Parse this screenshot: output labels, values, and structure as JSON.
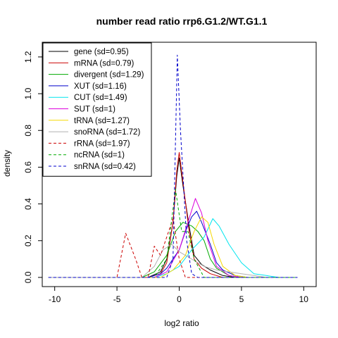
{
  "chart_data": {
    "type": "line",
    "title": "number read ratio rrp6.G1.2/WT.G1.1",
    "xlabel": "log2 ratio",
    "ylabel": "density",
    "xlim": [
      -11,
      11
    ],
    "ylim": [
      -0.05,
      1.28
    ],
    "xticks": [
      -10,
      -5,
      0,
      5,
      10
    ],
    "yticks": [
      0.0,
      0.2,
      0.4,
      0.6,
      0.8,
      1.0,
      1.2
    ],
    "xtick_labels": [
      "-10",
      "-5",
      "0",
      "5",
      "10"
    ],
    "ytick_labels": [
      "0.0",
      "0.2",
      "0.4",
      "0.6",
      "0.8",
      "1.0",
      "1.2"
    ],
    "legend_position": "top-left",
    "grid": false,
    "series": [
      {
        "name": "gene (sd=0.95)",
        "color": "#000000",
        "dashed": false,
        "points": [
          [
            -10.5,
            0
          ],
          [
            -2.5,
            0
          ],
          [
            -1.5,
            0.03
          ],
          [
            -1,
            0.1
          ],
          [
            -0.5,
            0.3
          ],
          [
            -0.2,
            0.55
          ],
          [
            0,
            0.65
          ],
          [
            0.3,
            0.5
          ],
          [
            0.8,
            0.28
          ],
          [
            1.2,
            0.12
          ],
          [
            1.8,
            0.07
          ],
          [
            2.5,
            0.04
          ],
          [
            3.5,
            0.01
          ],
          [
            4.5,
            0.0
          ],
          [
            9.5,
            0
          ]
        ]
      },
      {
        "name": "mRNA (sd=0.79)",
        "color": "#cc0000",
        "dashed": false,
        "points": [
          [
            -10.5,
            0
          ],
          [
            -2.5,
            0
          ],
          [
            -1.5,
            0.02
          ],
          [
            -1,
            0.08
          ],
          [
            -0.5,
            0.3
          ],
          [
            -0.2,
            0.58
          ],
          [
            0,
            0.68
          ],
          [
            0.3,
            0.52
          ],
          [
            0.8,
            0.25
          ],
          [
            1.2,
            0.1
          ],
          [
            1.8,
            0.05
          ],
          [
            2.5,
            0.02
          ],
          [
            3.5,
            0.0
          ],
          [
            9.5,
            0
          ]
        ]
      },
      {
        "name": "divergent (sd=1.29)",
        "color": "#00aa00",
        "dashed": false,
        "points": [
          [
            -10.5,
            0
          ],
          [
            -3,
            0
          ],
          [
            -2,
            0.03
          ],
          [
            -1,
            0.12
          ],
          [
            -0.3,
            0.25
          ],
          [
            0.3,
            0.3
          ],
          [
            1,
            0.28
          ],
          [
            1.5,
            0.25
          ],
          [
            2,
            0.2
          ],
          [
            2.5,
            0.1
          ],
          [
            3,
            0.05
          ],
          [
            4,
            0.01
          ],
          [
            5,
            0
          ],
          [
            9.5,
            0
          ]
        ]
      },
      {
        "name": "XUT (sd=1.16)",
        "color": "#0000cc",
        "dashed": false,
        "points": [
          [
            -10.5,
            0
          ],
          [
            -2.5,
            0
          ],
          [
            -1.5,
            0.02
          ],
          [
            -1,
            0.05
          ],
          [
            0,
            0.15
          ],
          [
            0.5,
            0.25
          ],
          [
            1,
            0.33
          ],
          [
            1.4,
            0.36
          ],
          [
            1.8,
            0.3
          ],
          [
            2.5,
            0.18
          ],
          [
            3,
            0.08
          ],
          [
            3.5,
            0.04
          ],
          [
            4.5,
            0.01
          ],
          [
            5.5,
            0
          ],
          [
            9.5,
            0
          ]
        ]
      },
      {
        "name": "CUT (sd=1.49)",
        "color": "#00e5ee",
        "dashed": false,
        "points": [
          [
            -10.5,
            0
          ],
          [
            -2,
            0
          ],
          [
            -1,
            0.02
          ],
          [
            0,
            0.06
          ],
          [
            1,
            0.15
          ],
          [
            2,
            0.22
          ],
          [
            2.7,
            0.32
          ],
          [
            3.2,
            0.28
          ],
          [
            4,
            0.18
          ],
          [
            5,
            0.08
          ],
          [
            6,
            0.02
          ],
          [
            7,
            0.01
          ],
          [
            8,
            0
          ],
          [
            9.5,
            0
          ]
        ]
      },
      {
        "name": "SUT (sd=1)",
        "color": "#dd00dd",
        "dashed": false,
        "points": [
          [
            -10.5,
            0
          ],
          [
            -2,
            0
          ],
          [
            -1,
            0.03
          ],
          [
            0,
            0.15
          ],
          [
            0.7,
            0.3
          ],
          [
            1.3,
            0.43
          ],
          [
            1.8,
            0.35
          ],
          [
            2.3,
            0.2
          ],
          [
            3,
            0.06
          ],
          [
            4,
            0.01
          ],
          [
            5,
            0
          ],
          [
            9.5,
            0
          ]
        ]
      },
      {
        "name": "tRNA (sd=1.27)",
        "color": "#f5d800",
        "dashed": false,
        "points": [
          [
            -10.5,
            0
          ],
          [
            -1.5,
            0
          ],
          [
            -0.5,
            0.04
          ],
          [
            0.5,
            0.12
          ],
          [
            1.2,
            0.25
          ],
          [
            1.8,
            0.33
          ],
          [
            2.3,
            0.3
          ],
          [
            2.8,
            0.18
          ],
          [
            3.5,
            0.06
          ],
          [
            4.5,
            0.01
          ],
          [
            5.5,
            0
          ],
          [
            9.5,
            0
          ]
        ]
      },
      {
        "name": "snoRNA (sd=1.72)",
        "color": "#b0b0b0",
        "dashed": false,
        "points": [
          [
            -10.5,
            0
          ],
          [
            -3,
            0
          ],
          [
            -2,
            0.06
          ],
          [
            -1.3,
            0.15
          ],
          [
            -0.6,
            0.18
          ],
          [
            0,
            0.14
          ],
          [
            1,
            0.1
          ],
          [
            2,
            0.06
          ],
          [
            3,
            0.04
          ],
          [
            4,
            0.03
          ],
          [
            5,
            0.02
          ],
          [
            6,
            0.01
          ],
          [
            7,
            0
          ],
          [
            9.5,
            0
          ]
        ]
      },
      {
        "name": "rRNA (sd=1.97)",
        "color": "#cc0000",
        "dashed": true,
        "points": [
          [
            -10.5,
            0
          ],
          [
            -5,
            0
          ],
          [
            -4.3,
            0.24
          ],
          [
            -3.5,
            0.1
          ],
          [
            -3,
            0
          ],
          [
            -2.5,
            0
          ],
          [
            -2,
            0.17
          ],
          [
            -1.5,
            0.12
          ],
          [
            -1,
            0.22
          ],
          [
            -0.5,
            0.32
          ],
          [
            0,
            0.1
          ],
          [
            0.5,
            0
          ],
          [
            9.5,
            0
          ]
        ]
      },
      {
        "name": "ncRNA (sd=1)",
        "color": "#00aa00",
        "dashed": true,
        "points": [
          [
            -10.5,
            0
          ],
          [
            -2,
            0
          ],
          [
            -1,
            0.1
          ],
          [
            -0.3,
            0.48
          ],
          [
            0.2,
            0.25
          ],
          [
            0.7,
            0.25
          ],
          [
            1.2,
            0.1
          ],
          [
            2,
            0
          ],
          [
            9.5,
            0
          ]
        ]
      },
      {
        "name": "snRNA (sd=0.42)",
        "color": "#0000cc",
        "dashed": true,
        "points": [
          [
            -10.5,
            0
          ],
          [
            -1,
            0
          ],
          [
            -0.5,
            0.1
          ],
          [
            -0.15,
            1.21
          ],
          [
            0.1,
            0.8
          ],
          [
            0.6,
            0.2
          ],
          [
            1,
            0.02
          ],
          [
            1.5,
            0
          ],
          [
            9.5,
            0
          ]
        ]
      }
    ]
  }
}
